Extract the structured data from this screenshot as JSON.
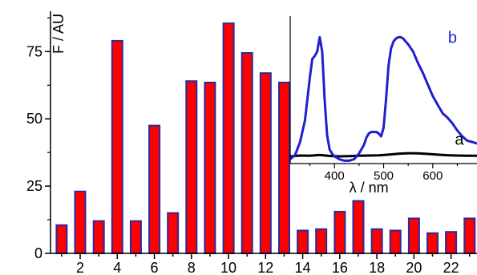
{
  "chart_data": [
    {
      "type": "bar",
      "title": "",
      "xlabel": "",
      "ylabel": "F / AU",
      "x": [
        1,
        2,
        3,
        4,
        5,
        6,
        7,
        8,
        9,
        10,
        11,
        12,
        13,
        14,
        15,
        16,
        17,
        18,
        19,
        20,
        21,
        22,
        23
      ],
      "values": [
        10.5,
        23,
        12,
        79,
        12,
        47.5,
        15,
        64,
        63.5,
        85.5,
        74.5,
        67,
        63.5,
        8.5,
        9,
        15.5,
        19.5,
        9,
        8.5,
        13,
        7.5,
        8,
        13
      ],
      "xticks": [
        "2",
        "4",
        "6",
        "8",
        "10",
        "12",
        "14",
        "16",
        "18",
        "20",
        "22"
      ],
      "yticks": [
        "0",
        "25",
        "50",
        "75"
      ],
      "xlim": [
        0.4,
        23.4
      ],
      "ylim": [
        0,
        90
      ],
      "bar_color": "#ff0000",
      "bar_edge_color": "#2a2aa0",
      "grid": false,
      "legend": "none"
    },
    {
      "type": "line",
      "title": "",
      "xlabel": "λ / nm",
      "ylabel": "",
      "xticks": [
        "400",
        "500",
        "600"
      ],
      "xlim": [
        310,
        690
      ],
      "ylim": [
        -5,
        100
      ],
      "series": [
        {
          "name": "a",
          "color": "#000000",
          "x": [
            310,
            330,
            350,
            370,
            390,
            410,
            430,
            450,
            470,
            490,
            510,
            530,
            550,
            570,
            590,
            610,
            630,
            650,
            670,
            690
          ],
          "y": [
            0,
            0.6,
            0.5,
            1,
            0.3,
            0,
            0.2,
            0.4,
            0.6,
            0.7,
            1.2,
            1.8,
            2.2,
            2.1,
            1.7,
            1.2,
            0.8,
            0.6,
            0.5,
            0.4
          ]
        },
        {
          "name": "b",
          "color": "#1f1fcf",
          "x": [
            310,
            320,
            330,
            340,
            350,
            355,
            360,
            365,
            370,
            375,
            380,
            385,
            390,
            395,
            400,
            410,
            420,
            430,
            440,
            450,
            460,
            465,
            470,
            475,
            480,
            485,
            490,
            495,
            500,
            505,
            510,
            515,
            520,
            525,
            530,
            535,
            540,
            545,
            550,
            560,
            570,
            580,
            590,
            600,
            610,
            620,
            630,
            640,
            650,
            660,
            670,
            680,
            690
          ],
          "y": [
            -2,
            1,
            10,
            25,
            55,
            68,
            70,
            73,
            83,
            73,
            40,
            15,
            5,
            2,
            0,
            -2,
            -3,
            -3,
            -2,
            2,
            8,
            13,
            16,
            17,
            17,
            17,
            16,
            14,
            20,
            40,
            63,
            75,
            80,
            82,
            83,
            83,
            82,
            80,
            78,
            73,
            65,
            58,
            50,
            42,
            36,
            30,
            27,
            23,
            18,
            14,
            11,
            10,
            9
          ]
        }
      ],
      "grid": false,
      "legend": "none"
    }
  ]
}
